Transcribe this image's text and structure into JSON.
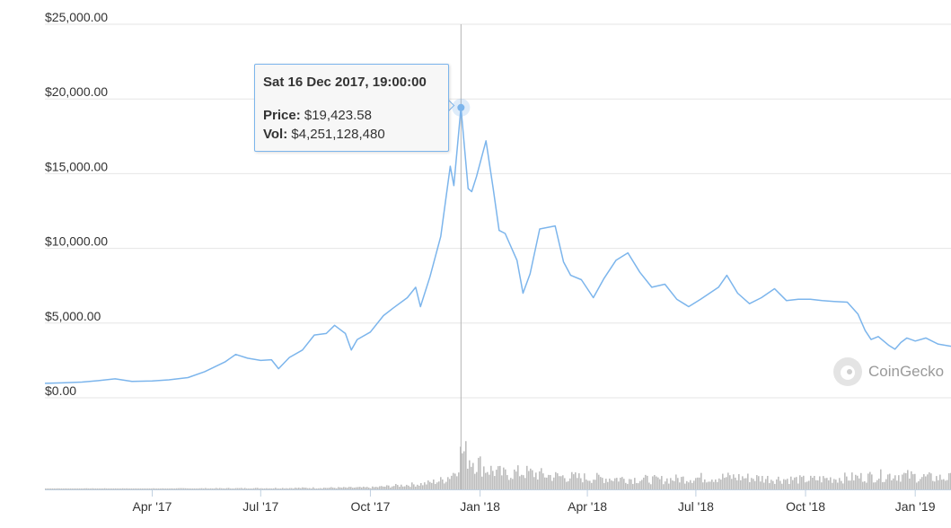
{
  "chart_data": {
    "type": "line",
    "title": "",
    "xlabel": "",
    "ylabel": "",
    "ylim": [
      0,
      25000
    ],
    "xlim": [
      "2017-01-01",
      "2019-01-31"
    ],
    "grid": true,
    "y_ticks": [
      "$25,000.00",
      "$20,000.00",
      "$15,000.00",
      "$10,000.00",
      "$5,000.00",
      "$0.00"
    ],
    "y_tick_values": [
      25000,
      20000,
      15000,
      10000,
      5000,
      0
    ],
    "x_ticks": [
      {
        "label": "Apr '17",
        "date": "2017-04-01"
      },
      {
        "label": "Jul '17",
        "date": "2017-07-01"
      },
      {
        "label": "Oct '17",
        "date": "2017-10-01"
      },
      {
        "label": "Jan '18",
        "date": "2018-01-01"
      },
      {
        "label": "Apr '18",
        "date": "2018-04-01"
      },
      {
        "label": "Jul '18",
        "date": "2018-07-01"
      },
      {
        "label": "Oct '18",
        "date": "2018-10-01"
      },
      {
        "label": "Jan '19",
        "date": "2019-01-01"
      }
    ],
    "series": [
      {
        "values": [
          [
            "2017-01-01",
            970
          ],
          [
            "2017-01-15",
            1000
          ],
          [
            "2017-02-01",
            1050
          ],
          [
            "2017-02-15",
            1150
          ],
          [
            "2017-03-01",
            1270
          ],
          [
            "2017-03-15",
            1100
          ],
          [
            "2017-04-01",
            1130
          ],
          [
            "2017-04-15",
            1200
          ],
          [
            "2017-05-01",
            1350
          ],
          [
            "2017-05-15",
            1750
          ],
          [
            "2017-06-01",
            2400
          ],
          [
            "2017-06-10",
            2900
          ],
          [
            "2017-06-20",
            2650
          ],
          [
            "2017-07-01",
            2500
          ],
          [
            "2017-07-10",
            2550
          ],
          [
            "2017-07-16",
            1950
          ],
          [
            "2017-07-25",
            2700
          ],
          [
            "2017-08-05",
            3200
          ],
          [
            "2017-08-15",
            4200
          ],
          [
            "2017-08-25",
            4300
          ],
          [
            "2017-09-01",
            4850
          ],
          [
            "2017-09-10",
            4300
          ],
          [
            "2017-09-15",
            3200
          ],
          [
            "2017-09-20",
            3900
          ],
          [
            "2017-10-01",
            4400
          ],
          [
            "2017-10-12",
            5500
          ],
          [
            "2017-10-20",
            6000
          ],
          [
            "2017-11-01",
            6700
          ],
          [
            "2017-11-08",
            7400
          ],
          [
            "2017-11-12",
            6100
          ],
          [
            "2017-11-20",
            8100
          ],
          [
            "2017-11-29",
            10800
          ],
          [
            "2017-12-07",
            15500
          ],
          [
            "2017-12-10",
            14200
          ],
          [
            "2017-12-16",
            19424
          ],
          [
            "2017-12-22",
            14000
          ],
          [
            "2017-12-25",
            13800
          ],
          [
            "2017-12-29",
            14800
          ],
          [
            "2018-01-06",
            17200
          ],
          [
            "2018-01-12",
            14000
          ],
          [
            "2018-01-17",
            11200
          ],
          [
            "2018-01-22",
            11000
          ],
          [
            "2018-02-01",
            9200
          ],
          [
            "2018-02-06",
            7000
          ],
          [
            "2018-02-12",
            8300
          ],
          [
            "2018-02-20",
            11300
          ],
          [
            "2018-03-05",
            11500
          ],
          [
            "2018-03-12",
            9100
          ],
          [
            "2018-03-18",
            8200
          ],
          [
            "2018-03-27",
            7900
          ],
          [
            "2018-04-06",
            6700
          ],
          [
            "2018-04-15",
            8000
          ],
          [
            "2018-04-25",
            9200
          ],
          [
            "2018-05-05",
            9700
          ],
          [
            "2018-05-15",
            8400
          ],
          [
            "2018-05-25",
            7400
          ],
          [
            "2018-06-05",
            7600
          ],
          [
            "2018-06-15",
            6600
          ],
          [
            "2018-06-25",
            6100
          ],
          [
            "2018-07-05",
            6600
          ],
          [
            "2018-07-20",
            7400
          ],
          [
            "2018-07-27",
            8200
          ],
          [
            "2018-08-05",
            7000
          ],
          [
            "2018-08-15",
            6300
          ],
          [
            "2018-08-25",
            6700
          ],
          [
            "2018-09-05",
            7300
          ],
          [
            "2018-09-15",
            6500
          ],
          [
            "2018-09-25",
            6600
          ],
          [
            "2018-10-05",
            6600
          ],
          [
            "2018-10-15",
            6500
          ],
          [
            "2018-10-25",
            6450
          ],
          [
            "2018-11-05",
            6400
          ],
          [
            "2018-11-14",
            5600
          ],
          [
            "2018-11-20",
            4500
          ],
          [
            "2018-11-25",
            3900
          ],
          [
            "2018-12-01",
            4100
          ],
          [
            "2018-12-10",
            3500
          ],
          [
            "2018-12-15",
            3250
          ],
          [
            "2018-12-20",
            3700
          ],
          [
            "2018-12-25",
            4000
          ],
          [
            "2019-01-01",
            3800
          ],
          [
            "2019-01-10",
            4000
          ],
          [
            "2019-01-20",
            3600
          ],
          [
            "2019-01-31",
            3450
          ]
        ]
      },
      {
        "values": [
          [
            "2017-01-15",
            0.02
          ],
          [
            "2017-04-01",
            0.02
          ],
          [
            "2017-07-01",
            0.03
          ],
          [
            "2017-10-01",
            0.05
          ],
          [
            "2017-11-15",
            0.15
          ],
          [
            "2017-12-01",
            0.25
          ],
          [
            "2017-12-10",
            0.45
          ],
          [
            "2017-12-16",
            1.0
          ],
          [
            "2017-12-22",
            0.85
          ],
          [
            "2018-01-05",
            0.55
          ],
          [
            "2018-01-20",
            0.4
          ],
          [
            "2018-02-06",
            0.45
          ],
          [
            "2018-03-01",
            0.35
          ],
          [
            "2018-04-01",
            0.3
          ],
          [
            "2018-05-01",
            0.28
          ],
          [
            "2018-06-01",
            0.25
          ],
          [
            "2018-07-01",
            0.3
          ],
          [
            "2018-08-01",
            0.32
          ],
          [
            "2018-09-01",
            0.28
          ],
          [
            "2018-10-01",
            0.25
          ],
          [
            "2018-11-15",
            0.32
          ],
          [
            "2018-12-15",
            0.38
          ],
          [
            "2019-01-15",
            0.3
          ]
        ]
      }
    ],
    "tooltip": {
      "date": "Sat 16 Dec 2017, 19:00:00",
      "point_date": "2017-12-16",
      "price_label": "Price:",
      "price_value": "$19,423.58",
      "vol_label": "Vol:",
      "vol_value": "$4,251,128,480"
    },
    "line_color": "#7cb5ec",
    "volume_color": "#bdbdbd",
    "grid_color": "#e6e6e6"
  },
  "watermark": {
    "text": "CoinGecko",
    "icon": "coingecko-logo-icon"
  }
}
